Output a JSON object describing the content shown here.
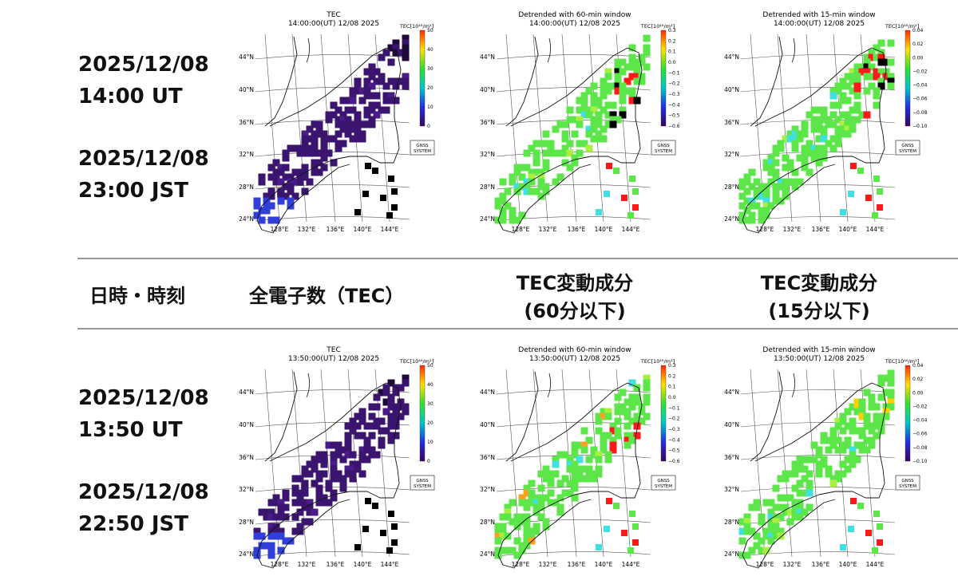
{
  "rows": [
    {
      "ut_date": "2025/12/08",
      "ut_time": "14:00 UT",
      "jst_date": "2025/12/08",
      "jst_time": "23:00 JST",
      "stamp": "14:00:00(UT) 12/08 2025"
    },
    {
      "ut_date": "2025/12/08",
      "ut_time": "13:50 UT",
      "jst_date": "2025/12/08",
      "jst_time": "22:50 JST",
      "stamp": "13:50:00(UT) 12/08 2025"
    }
  ],
  "header": {
    "col1": "日時・時刻",
    "col2": "全電子数（TEC）",
    "col3_line1": "TEC変動成分",
    "col3_line2": "(60分以下)",
    "col4_line1": "TEC変動成分",
    "col4_line2": "(15分以下)"
  },
  "panels": {
    "tec": {
      "title": "TEC",
      "cbar_label": "TEC[10¹⁶/m²]",
      "ticks": [
        "50",
        "40",
        "30",
        "20",
        "10",
        "0"
      ],
      "colors": [
        "#ff2a00",
        "#ffe000",
        "#30e030",
        "#00c8c8",
        "#2030e0",
        "#3a0060"
      ]
    },
    "d60": {
      "title": "Detrended with 60-min window",
      "cbar_label": "TEC[10¹⁶/m²]",
      "ticks": [
        "0.3",
        "0.2",
        "0.1",
        "0.0",
        "−0.1",
        "−0.2",
        "−0.3",
        "−0.4",
        "−0.5",
        "−0.6"
      ],
      "colors": [
        "#ff2a00",
        "#ffe000",
        "#30e030",
        "#00c8c8",
        "#2030e0",
        "#3a0060"
      ]
    },
    "d15": {
      "title": "Detrended with 15-min window",
      "cbar_label": "TEC[10¹⁶/m²]",
      "ticks": [
        "0.04",
        "0.02",
        "0.00",
        "−0.02",
        "−0.04",
        "−0.06",
        "−0.08",
        "−0.10"
      ],
      "colors": [
        "#ff2a00",
        "#ffe000",
        "#30e030",
        "#00c8c8",
        "#2030e0",
        "#3a0060"
      ]
    }
  },
  "map": {
    "lat_labels": [
      "44°N",
      "40°N",
      "36°N",
      "32°N",
      "28°N",
      "24°N"
    ],
    "lon_labels": [
      "128°E",
      "132°E",
      "136°E",
      "140°E",
      "144°E"
    ],
    "badge_line1": "GNSS",
    "badge_line2": "SYSTEM"
  },
  "colors": {
    "tec_fill": "#3b1470",
    "tec_dark": "#1e0a3a",
    "tec_blue": "#2f3fd8",
    "dt_green": "#5ce64a",
    "dt_red": "#ff1a1a",
    "dt_cyan": "#40e0e0",
    "dt_orange": "#ffa020",
    "black": "#000000"
  }
}
